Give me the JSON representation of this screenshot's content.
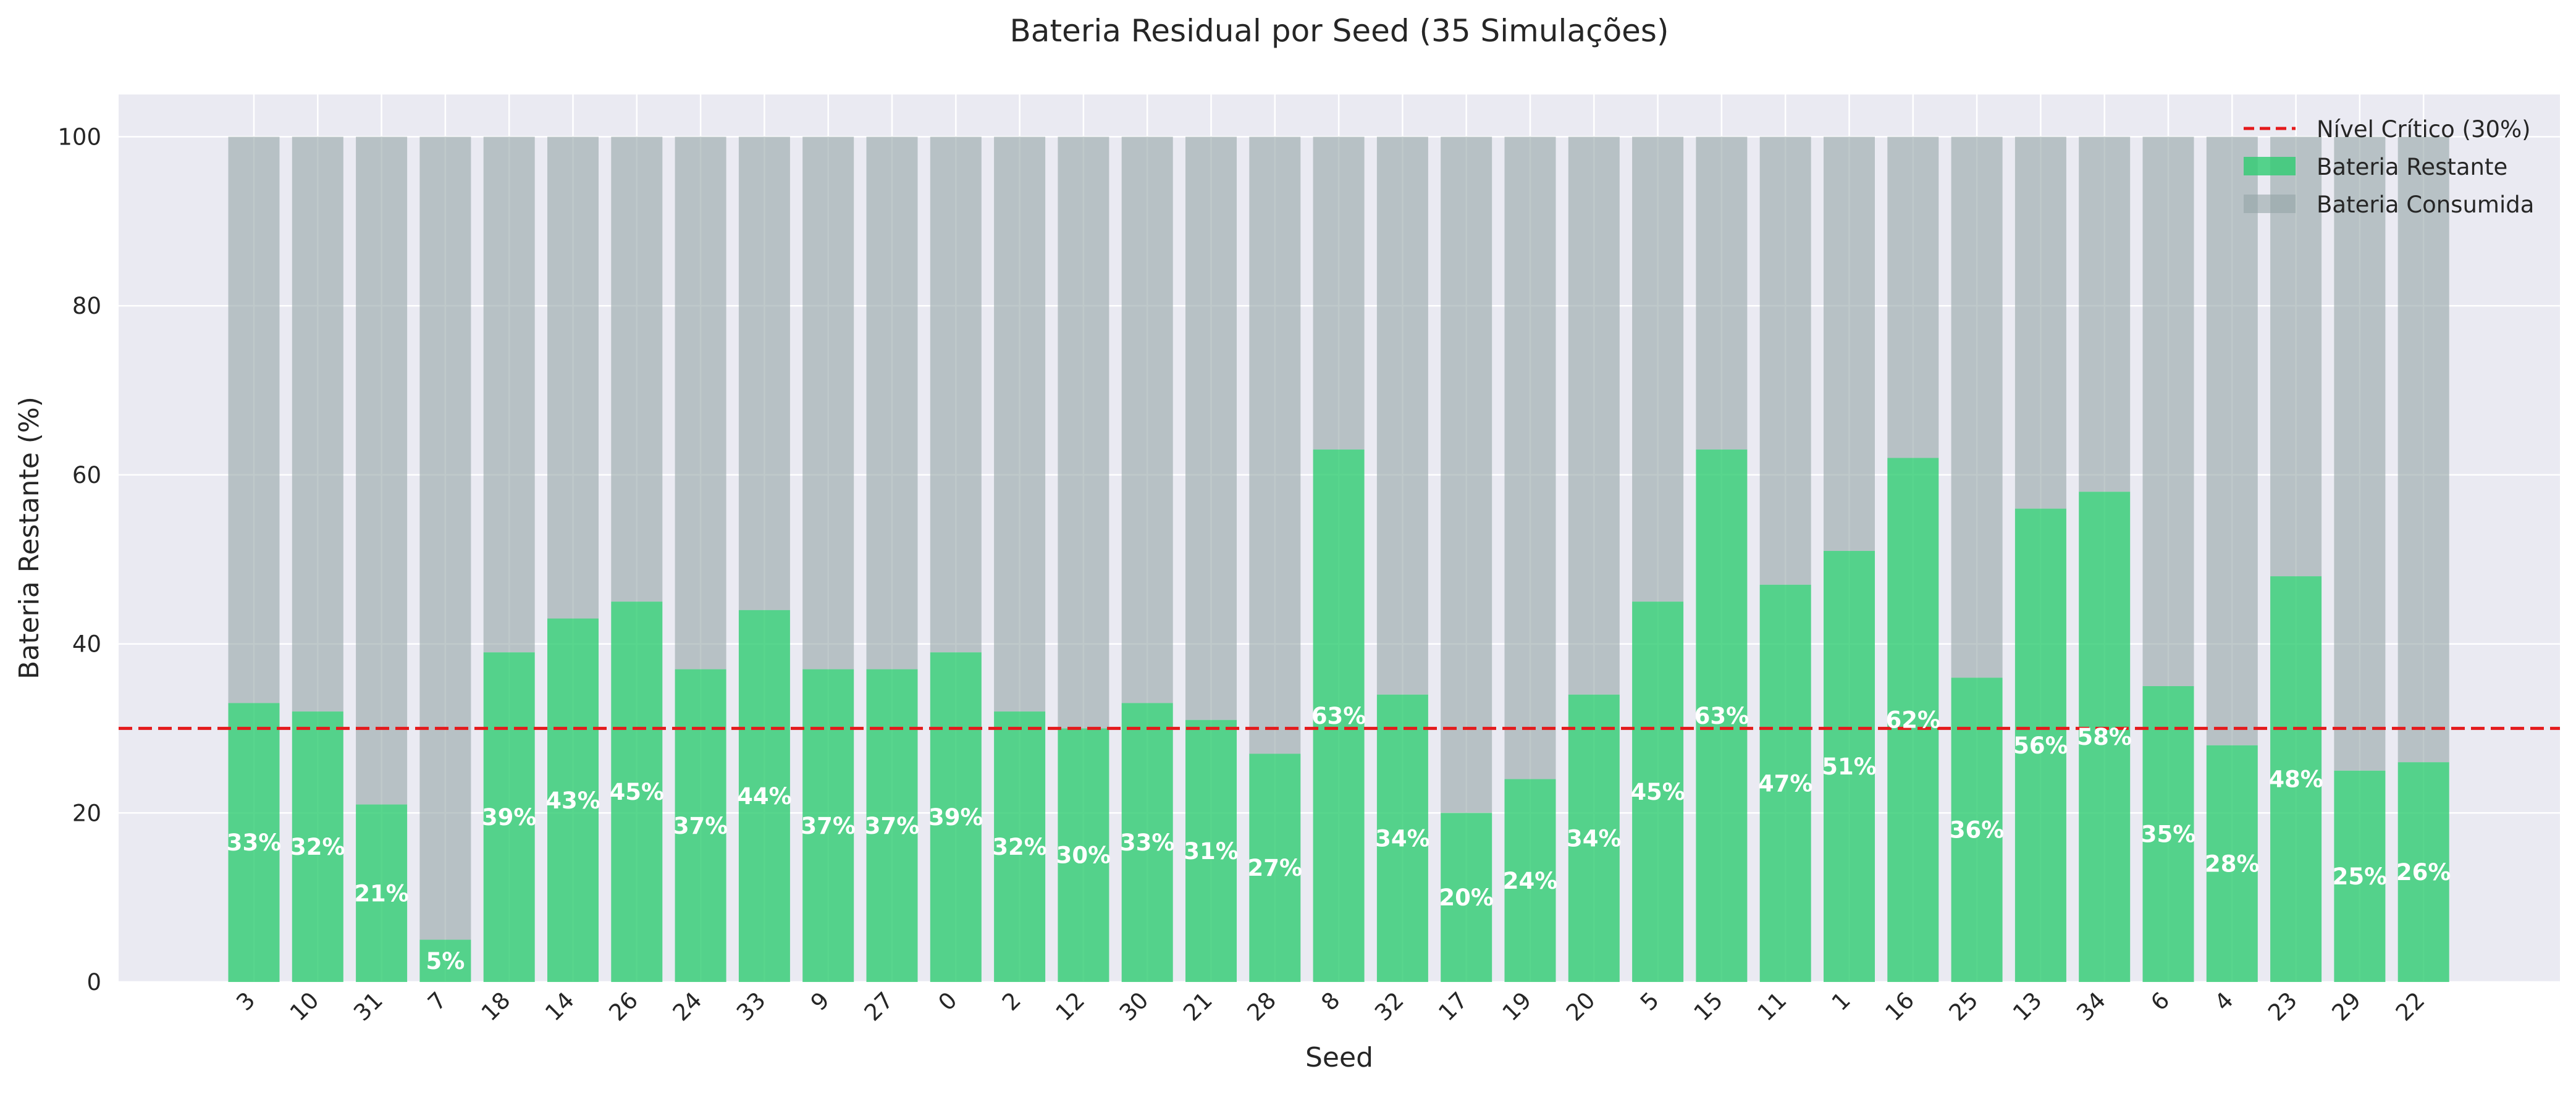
{
  "chart_data": {
    "type": "bar",
    "title": "Bateria Residual por Seed (35 Simulações)",
    "xlabel": "Seed",
    "ylabel": "Bateria Restante (%)",
    "ylim": [
      0,
      105
    ],
    "yticks": [
      0,
      20,
      40,
      60,
      80,
      100
    ],
    "grid": true,
    "legend_position": "top-right",
    "categories": [
      "3",
      "10",
      "31",
      "7",
      "18",
      "14",
      "26",
      "24",
      "33",
      "9",
      "27",
      "0",
      "2",
      "12",
      "30",
      "21",
      "28",
      "8",
      "32",
      "17",
      "19",
      "20",
      "5",
      "15",
      "11",
      "1",
      "16",
      "25",
      "13",
      "34",
      "6",
      "4",
      "23",
      "29",
      "22"
    ],
    "series": [
      {
        "name": "Bateria Restante",
        "color": "#2ecc71",
        "values": [
          33,
          32,
          21,
          5,
          39,
          43,
          45,
          37,
          44,
          37,
          37,
          39,
          32,
          30,
          33,
          31,
          27,
          63,
          34,
          20,
          24,
          34,
          45,
          63,
          47,
          51,
          62,
          36,
          56,
          58,
          35,
          28,
          48,
          25,
          26
        ]
      },
      {
        "name": "Bateria Consumida",
        "color": "#95a5a6",
        "values": [
          67,
          68,
          79,
          95,
          61,
          57,
          55,
          63,
          56,
          63,
          63,
          61,
          68,
          70,
          67,
          69,
          73,
          37,
          66,
          80,
          76,
          66,
          55,
          37,
          53,
          49,
          38,
          64,
          44,
          42,
          65,
          72,
          52,
          75,
          74
        ]
      }
    ],
    "data_labels": [
      "33%",
      "32%",
      "21%",
      "5%",
      "39%",
      "43%",
      "45%",
      "37%",
      "44%",
      "37%",
      "37%",
      "39%",
      "32%",
      "30%",
      "33%",
      "31%",
      "27%",
      "63%",
      "34%",
      "20%",
      "24%",
      "34%",
      "45%",
      "63%",
      "47%",
      "51%",
      "62%",
      "36%",
      "56%",
      "58%",
      "35%",
      "28%",
      "48%",
      "25%",
      "26%"
    ],
    "reference_line": {
      "name": "Nível Crítico (30%)",
      "value": 30,
      "color": "#e41a1c",
      "style": "dashed"
    },
    "legend": [
      "Nível Crítico (30%)",
      "Bateria Restante",
      "Bateria Consumida"
    ]
  }
}
